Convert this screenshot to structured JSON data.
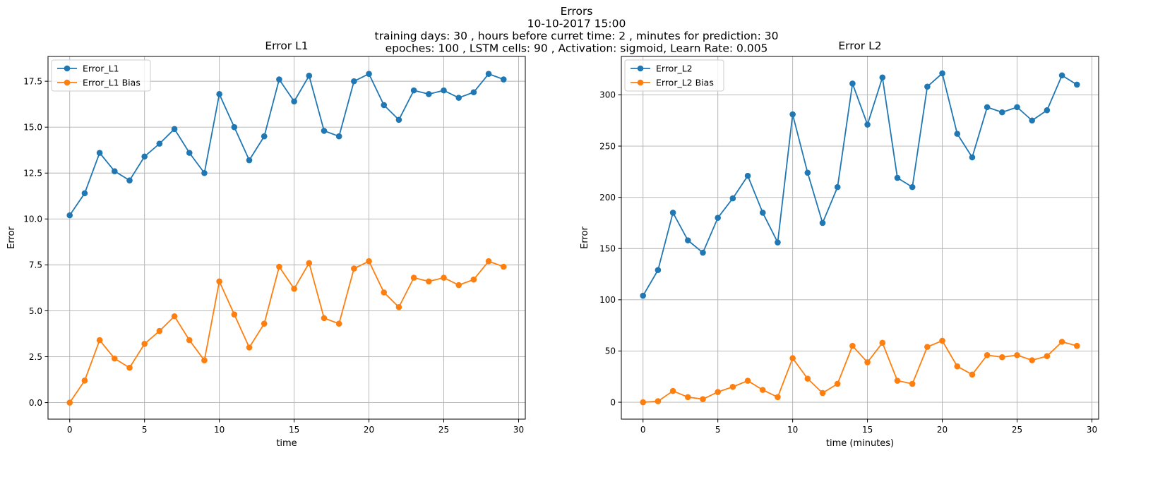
{
  "figure": {
    "suptitle_lines": [
      "Errors",
      "10-10-2017 15:00",
      "training days: 30 , hours before curret time: 2 , minutes for prediction: 30",
      "epoches: 100 , LSTM cells: 90 , Activation: sigmoid, Learn Rate: 0.005"
    ]
  },
  "colors": {
    "series1": "#1f77b4",
    "series2": "#ff7f0e",
    "grid": "#b0b0b0",
    "axes": "#000000",
    "legend_border": "#cccccc"
  },
  "chart_data": [
    {
      "type": "line",
      "title": "Error L1",
      "xlabel": "time",
      "ylabel": "Error",
      "xlim": [
        -1.45,
        30.45
      ],
      "ylim": [
        -0.9,
        18.85
      ],
      "xticks": [
        0,
        5,
        10,
        15,
        20,
        25,
        30
      ],
      "xtick_labels": [
        "0",
        "5",
        "10",
        "15",
        "20",
        "25",
        "30"
      ],
      "yticks": [
        0,
        2.5,
        5,
        7.5,
        10,
        12.5,
        15,
        17.5
      ],
      "ytick_labels": [
        "0.0",
        "2.5",
        "5.0",
        "7.5",
        "10.0",
        "12.5",
        "15.0",
        "17.5"
      ],
      "grid": true,
      "legend_position": "upper-left",
      "marker": "circle",
      "x": [
        0,
        1,
        2,
        3,
        4,
        5,
        6,
        7,
        8,
        9,
        10,
        11,
        12,
        13,
        14,
        15,
        16,
        17,
        18,
        19,
        20,
        21,
        22,
        23,
        24,
        25,
        26,
        27,
        28,
        29
      ],
      "series": [
        {
          "name": "Error_L1",
          "color": "#1f77b4",
          "values": [
            10.2,
            11.4,
            13.6,
            12.6,
            12.1,
            13.4,
            14.1,
            14.9,
            13.6,
            12.5,
            16.8,
            15.0,
            13.2,
            14.5,
            17.6,
            16.4,
            17.8,
            14.8,
            14.5,
            17.5,
            17.9,
            16.2,
            15.4,
            17.0,
            16.8,
            17.0,
            16.6,
            16.9,
            17.9,
            17.6
          ]
        },
        {
          "name": "Error_L1 Bias",
          "color": "#ff7f0e",
          "values": [
            0.0,
            1.2,
            3.4,
            2.4,
            1.9,
            3.2,
            3.9,
            4.7,
            3.4,
            2.3,
            6.6,
            4.8,
            3.0,
            4.3,
            7.4,
            6.2,
            7.6,
            4.6,
            4.3,
            7.3,
            7.7,
            6.0,
            5.2,
            6.8,
            6.6,
            6.8,
            6.4,
            6.7,
            7.7,
            7.4
          ]
        }
      ]
    },
    {
      "type": "line",
      "title": "Error L2",
      "xlabel": "time (minutes)",
      "ylabel": "Error",
      "xlim": [
        -1.45,
        30.45
      ],
      "ylim": [
        -16.5,
        337.5
      ],
      "xticks": [
        0,
        5,
        10,
        15,
        20,
        25,
        30
      ],
      "xtick_labels": [
        "0",
        "5",
        "10",
        "15",
        "20",
        "25",
        "30"
      ],
      "yticks": [
        0,
        50,
        100,
        150,
        200,
        250,
        300
      ],
      "ytick_labels": [
        "0",
        "50",
        "100",
        "150",
        "200",
        "250",
        "300"
      ],
      "grid": true,
      "legend_position": "upper-left",
      "marker": "circle",
      "x": [
        0,
        1,
        2,
        3,
        4,
        5,
        6,
        7,
        8,
        9,
        10,
        11,
        12,
        13,
        14,
        15,
        16,
        17,
        18,
        19,
        20,
        21,
        22,
        23,
        24,
        25,
        26,
        27,
        28,
        29
      ],
      "series": [
        {
          "name": "Error_L2",
          "color": "#1f77b4",
          "values": [
            104,
            129,
            185,
            158,
            146,
            180,
            199,
            221,
            185,
            156,
            281,
            224,
            175,
            210,
            311,
            271,
            317,
            219,
            210,
            308,
            321,
            262,
            239,
            288,
            283,
            288,
            275,
            285,
            319,
            310
          ]
        },
        {
          "name": "Error_L2 Bias",
          "color": "#ff7f0e",
          "values": [
            0,
            1,
            11,
            5,
            3,
            10,
            15,
            21,
            12,
            5,
            43,
            23,
            9,
            18,
            55,
            39,
            58,
            21,
            18,
            54,
            60,
            35,
            27,
            46,
            44,
            46,
            41,
            45,
            59,
            55
          ]
        }
      ]
    }
  ]
}
